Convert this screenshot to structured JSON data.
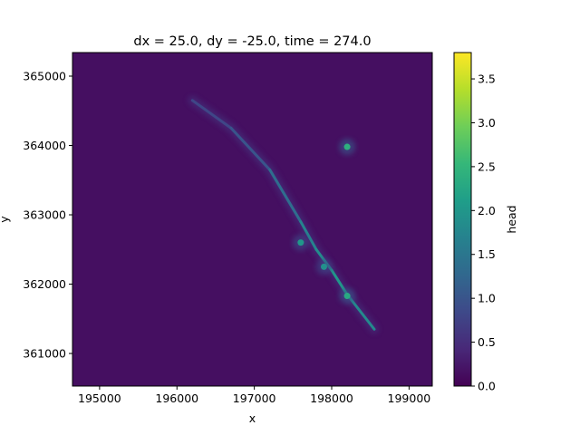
{
  "chart_data": {
    "type": "heatmap",
    "title": "dx = 25.0, dy = -25.0, time = 274.0",
    "xlabel": "x",
    "ylabel": "y",
    "xlim": [
      194650,
      199300
    ],
    "ylim": [
      360530,
      365340
    ],
    "x_ticks": [
      195000,
      196000,
      197000,
      198000,
      199000
    ],
    "y_ticks": [
      361000,
      362000,
      363000,
      364000,
      365000
    ],
    "x_tick_labels": [
      "195000",
      "196000",
      "197000",
      "198000",
      "199000"
    ],
    "y_tick_labels": [
      "361000",
      "362000",
      "363000",
      "364000",
      "365000"
    ],
    "colorbar": {
      "label": "head",
      "colormap": "viridis",
      "vmin": 0.0,
      "vmax": 3.8,
      "ticks": [
        0.0,
        0.5,
        1.0,
        1.5,
        2.0,
        2.5,
        3.0,
        3.5
      ],
      "tick_labels": [
        "0.0",
        "0.5",
        "1.0",
        "1.5",
        "2.0",
        "2.5",
        "3.0",
        "3.5"
      ]
    },
    "background_head": 0.15,
    "ridge": {
      "description": "linear high-head feature (river)",
      "points": [
        {
          "x": 196200,
          "y": 364650,
          "head": 0.7
        },
        {
          "x": 196700,
          "y": 364250,
          "head": 0.9
        },
        {
          "x": 197200,
          "y": 363650,
          "head": 1.1
        },
        {
          "x": 197600,
          "y": 362900,
          "head": 1.6
        },
        {
          "x": 197800,
          "y": 362500,
          "head": 1.8
        },
        {
          "x": 198000,
          "y": 362200,
          "head": 1.9
        },
        {
          "x": 198200,
          "y": 361850,
          "head": 2.1
        },
        {
          "x": 198550,
          "y": 361350,
          "head": 1.5
        }
      ]
    },
    "hotspots": [
      {
        "x": 198200,
        "y": 363980,
        "head": 2.4
      },
      {
        "x": 197600,
        "y": 362600,
        "head": 2.0
      },
      {
        "x": 198200,
        "y": 361830,
        "head": 2.3
      },
      {
        "x": 197900,
        "y": 362250,
        "head": 1.9
      }
    ],
    "colors": {
      "viridis": [
        "#440154",
        "#482878",
        "#3e4989",
        "#31688e",
        "#26828e",
        "#1f9e89",
        "#35b779",
        "#6ece58",
        "#b5de2b",
        "#fde725"
      ],
      "background": "#ffffff",
      "axes": "#000000"
    }
  }
}
